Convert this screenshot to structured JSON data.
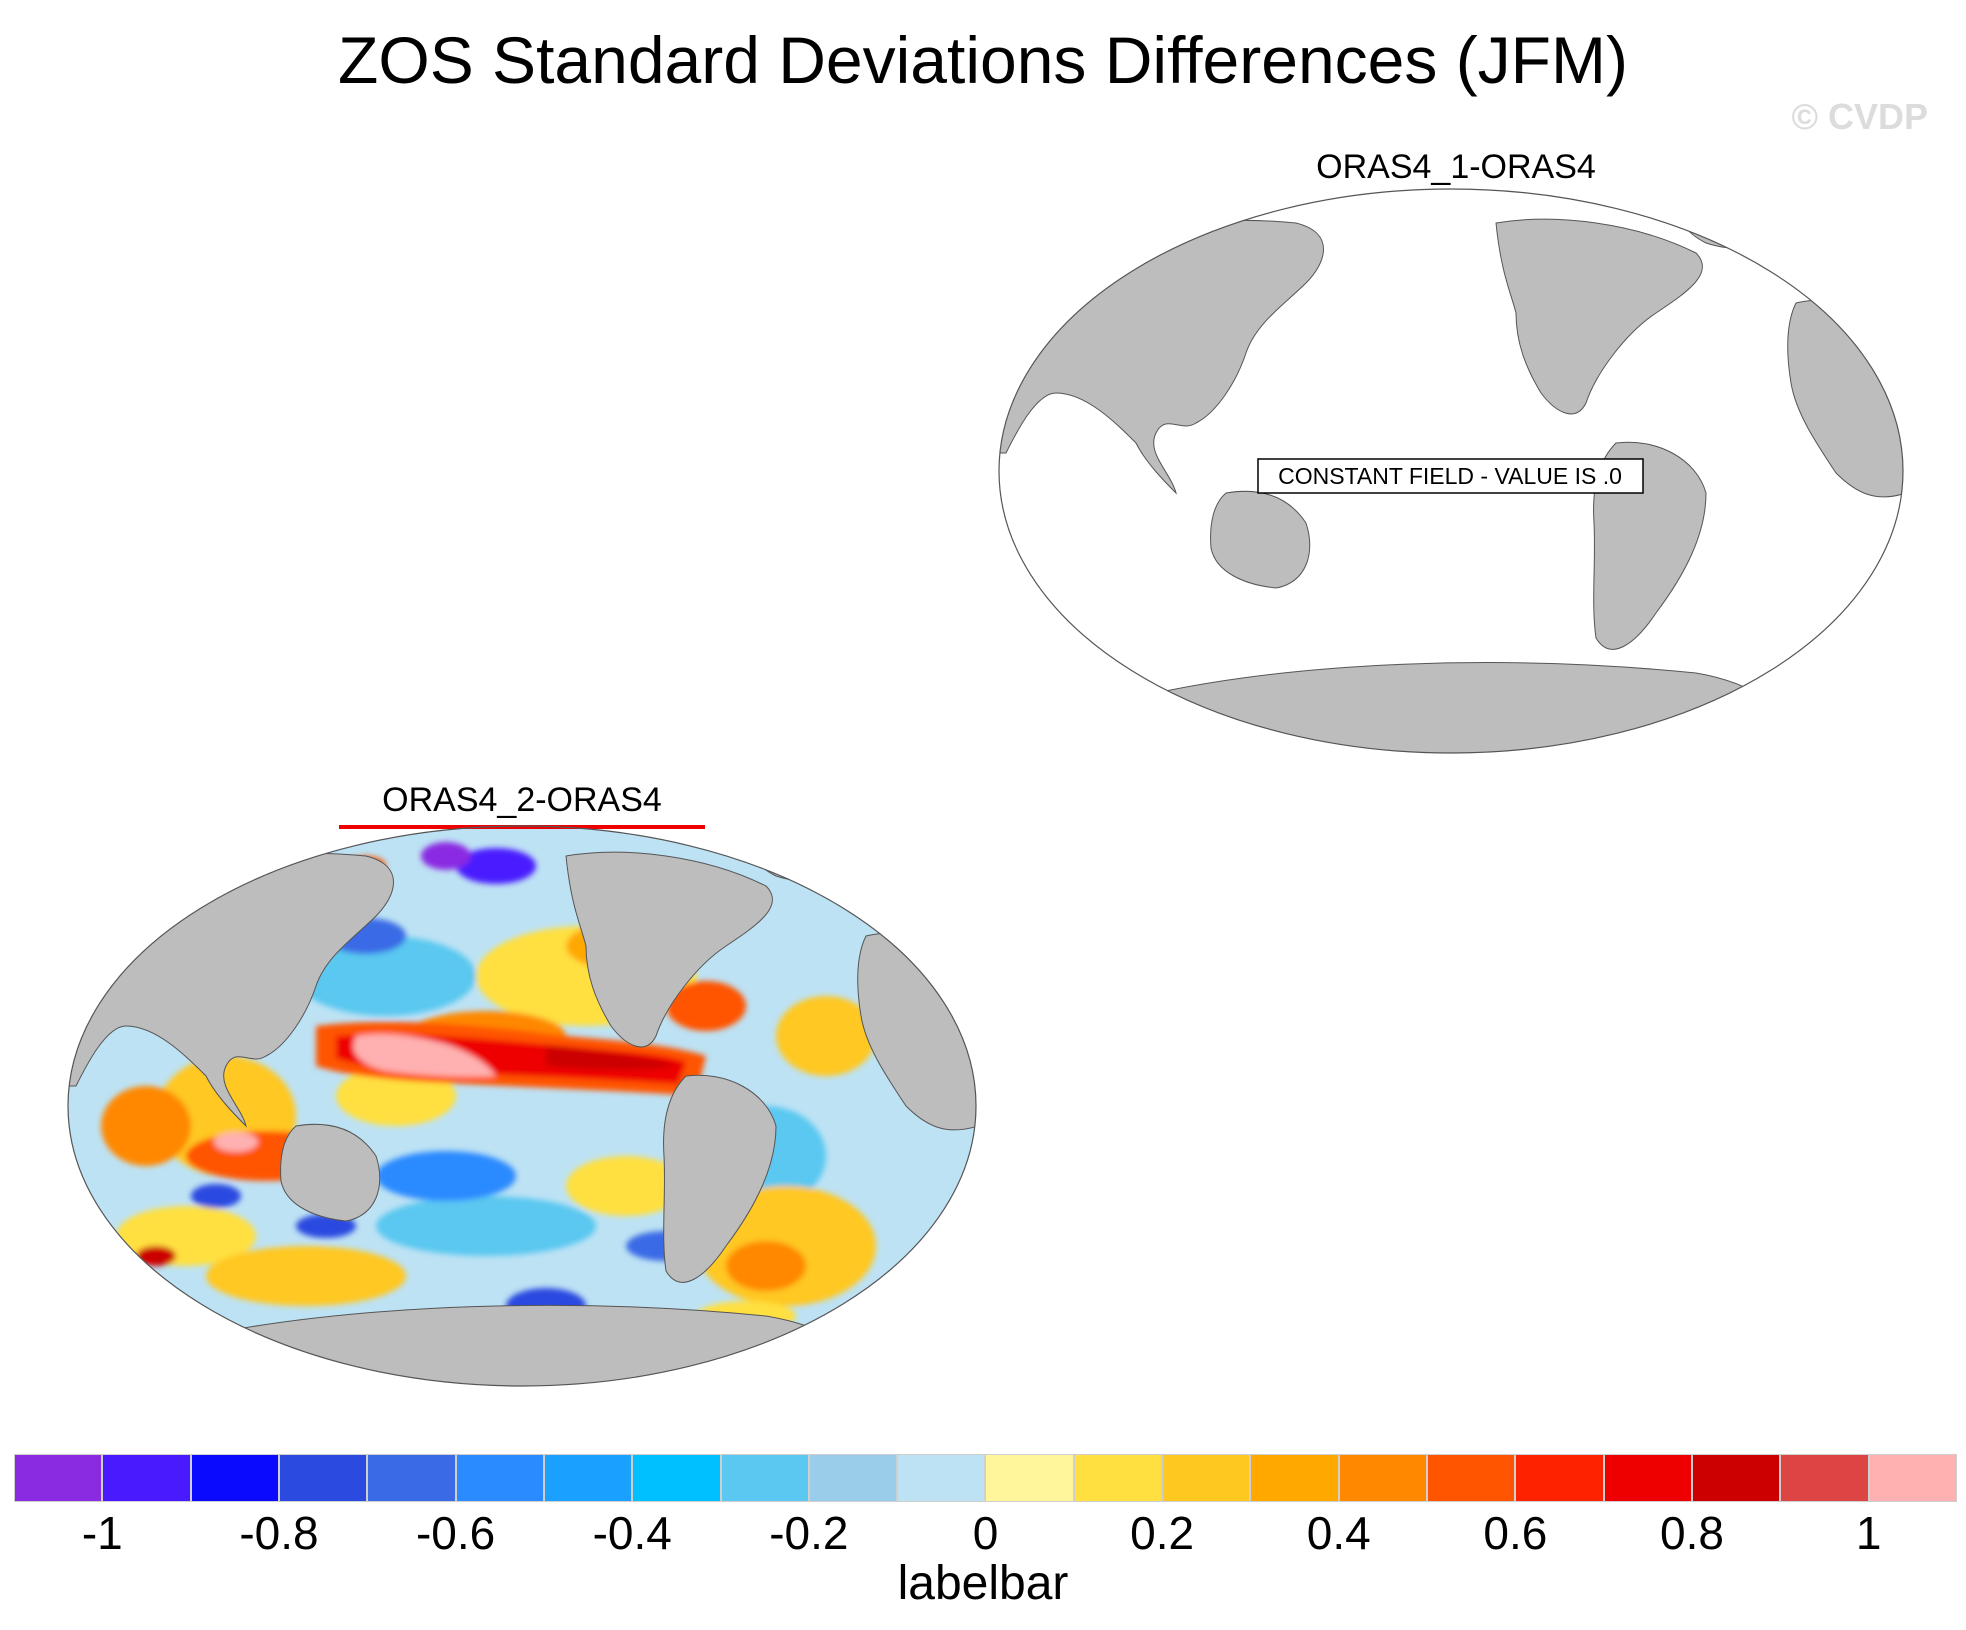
{
  "figure": {
    "title": "ZOS Standard Deviations Differences (JFM)",
    "watermark": "© CVDP"
  },
  "panels": [
    {
      "title": "ORAS4_1-ORAS4",
      "message": "CONSTANT FIELD - VALUE IS .0"
    },
    {
      "title": "ORAS4_2-ORAS4"
    }
  ],
  "labelbar": {
    "title": "labelbar",
    "tick_labels": [
      "-1",
      "-0.8",
      "-0.6",
      "-0.4",
      "-0.2",
      "0",
      "0.2",
      "0.4",
      "0.6",
      "0.8",
      "1"
    ],
    "levels": [
      -1.1,
      -1.0,
      -0.9,
      -0.8,
      -0.7,
      -0.6,
      -0.5,
      -0.4,
      -0.3,
      -0.2,
      -0.1,
      0,
      0.1,
      0.2,
      0.3,
      0.4,
      0.5,
      0.6,
      0.7,
      0.8,
      0.9,
      1.0,
      1.1
    ],
    "colors": [
      "#8a2be2",
      "#4a1aff",
      "#0a0aff",
      "#2a4ae0",
      "#3a6ae6",
      "#2a8aff",
      "#1aa0ff",
      "#00c0ff",
      "#5ac8f0",
      "#9acdea",
      "#bde2f4",
      "#fff59a",
      "#ffe040",
      "#ffc820",
      "#ffa800",
      "#ff8800",
      "#ff5500",
      "#ff2200",
      "#ee0000",
      "#cc0000",
      "#dd4444",
      "#ffb0b0"
    ]
  },
  "colors": {
    "land": "#bdbdbd",
    "ocean_blank": "#ffffff",
    "coast": "#555555"
  }
}
